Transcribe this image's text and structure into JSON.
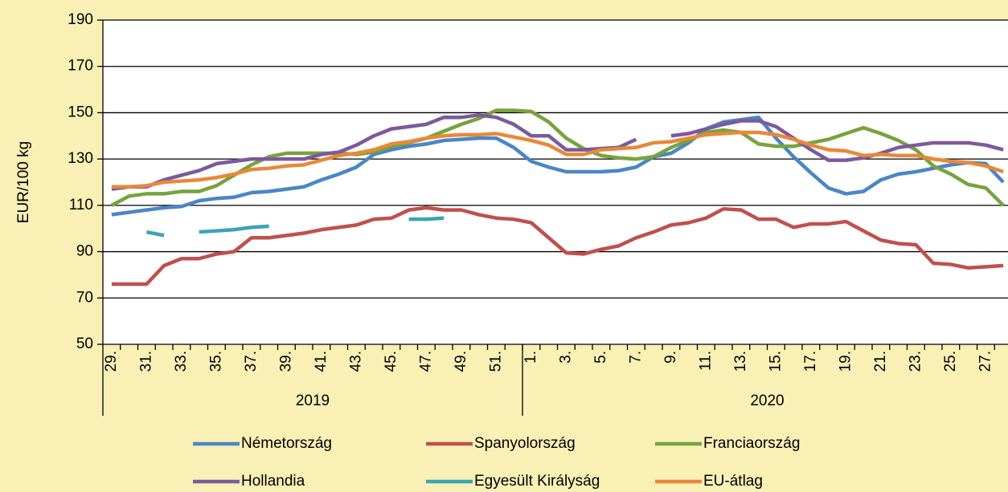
{
  "chart_data": {
    "type": "line",
    "y_axis_label": "EUR/100 kg",
    "ylim": [
      50,
      190
    ],
    "yticks": [
      50,
      70,
      90,
      110,
      130,
      150,
      170,
      190
    ],
    "grid": true,
    "legend": "bottom",
    "groups": [
      {
        "label": "2019",
        "categories": [
          "29.",
          null,
          "31.",
          null,
          "33.",
          null,
          "35.",
          null,
          "37.",
          null,
          "39.",
          null,
          "41.",
          null,
          "43.",
          null,
          "45.",
          null,
          "47.",
          null,
          "49.",
          null,
          "51.",
          null
        ]
      },
      {
        "label": "2020",
        "categories": [
          "1.",
          null,
          "3.",
          null,
          "5.",
          null,
          "7.",
          null,
          "9.",
          null,
          "11.",
          null,
          "13.",
          null,
          "15.",
          null,
          "17.",
          null,
          "19.",
          null,
          "21.",
          null,
          "23.",
          null,
          "25.",
          null,
          "27.",
          null
        ]
      }
    ],
    "series": [
      {
        "name": "Németország",
        "color": "#4a86c5",
        "values": [
          106,
          107,
          108,
          109,
          109.5,
          112,
          113,
          113.5,
          115.5,
          116,
          117,
          118,
          121,
          123.5,
          126.5,
          132,
          134,
          135.5,
          136.5,
          138,
          138.5,
          139,
          139,
          135,
          129,
          126.5,
          124.5,
          124.5,
          124.5,
          125,
          126.5,
          131,
          132.5,
          137,
          143,
          146,
          147,
          148,
          139,
          131,
          124,
          117.5,
          115,
          116,
          121,
          123.5,
          124.5,
          126,
          127.5,
          128.5,
          128,
          120
        ]
      },
      {
        "name": "Spanyolország",
        "color": "#c0504d",
        "values": [
          76,
          76,
          76,
          84,
          87,
          87,
          89,
          90,
          96,
          96,
          97,
          98,
          99.5,
          100.5,
          101.5,
          104,
          104.5,
          108,
          109,
          108,
          108,
          106,
          104.5,
          104,
          102.5,
          96,
          89.5,
          89,
          91,
          92.5,
          96,
          98.5,
          101.5,
          102.5,
          104.5,
          108.5,
          108,
          104,
          104,
          100.5,
          102,
          102,
          103,
          99,
          95,
          93.5,
          93,
          85,
          84.5,
          83,
          83.5,
          84
        ]
      },
      {
        "name": "Franciaország",
        "color": "#77a33c",
        "values": [
          110,
          114,
          115,
          115,
          116,
          116,
          118.5,
          123,
          127.5,
          131,
          132.5,
          132.5,
          132.5,
          132.5,
          132,
          133,
          135.5,
          137,
          139,
          142,
          145,
          147.5,
          151,
          151,
          150.5,
          146,
          139,
          134.5,
          131.5,
          130.5,
          130,
          131,
          135,
          138,
          141.5,
          142.5,
          141.5,
          136.5,
          135.5,
          135.5,
          137,
          138.5,
          141,
          143.5,
          141,
          138,
          134,
          127,
          123.5,
          119,
          117.5,
          110
        ]
      },
      {
        "name": "Hollandia",
        "color": "#7b5a9c",
        "values": [
          117,
          118,
          118,
          121,
          123,
          125,
          128,
          129,
          130,
          130,
          130,
          130,
          132,
          133,
          136,
          140,
          143,
          144,
          145,
          148,
          148,
          149,
          148,
          145,
          140,
          140,
          134,
          134,
          134.5,
          135,
          138.5,
          null,
          140,
          141,
          143,
          145,
          146.5,
          146.5,
          144,
          139,
          134,
          129.5,
          129.5,
          130.5,
          132.5,
          135,
          136,
          137,
          137,
          137,
          136,
          134
        ]
      },
      {
        "name": "Egyesült Királyság",
        "color": "#3aa5b5",
        "values": [
          null,
          null,
          98.5,
          97,
          null,
          98.5,
          99,
          99.5,
          100.5,
          101,
          null,
          null,
          null,
          null,
          null,
          null,
          null,
          104,
          104,
          104.5,
          null,
          null,
          null,
          null,
          null,
          null,
          null,
          null,
          null,
          null,
          null,
          null,
          null,
          null,
          null,
          null,
          null,
          null,
          null,
          null,
          null,
          null,
          null,
          null,
          null,
          null,
          null,
          null,
          null,
          null,
          null,
          null
        ]
      },
      {
        "name": "EU-átlag",
        "color": "#e9883a",
        "values": [
          118,
          118,
          118.5,
          120,
          120.5,
          121,
          122,
          123.5,
          125.5,
          126,
          127,
          127.5,
          129.5,
          131.5,
          132.5,
          134,
          136.5,
          137.5,
          139,
          140,
          140.5,
          140.5,
          141,
          139.5,
          138,
          136,
          132,
          132,
          134,
          134.5,
          135,
          137,
          137.5,
          139,
          140.5,
          141,
          141.5,
          141.5,
          140.5,
          138.5,
          136,
          134,
          133.5,
          131.5,
          132,
          131.5,
          131.5,
          130,
          129,
          128.5,
          127,
          124.5
        ]
      }
    ]
  }
}
